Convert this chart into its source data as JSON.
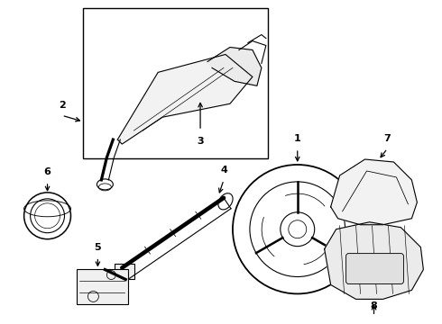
{
  "bg_color": "#ffffff",
  "line_color": "#000000",
  "line_width": 0.8,
  "fig_width": 4.9,
  "fig_height": 3.6,
  "dpi": 100
}
